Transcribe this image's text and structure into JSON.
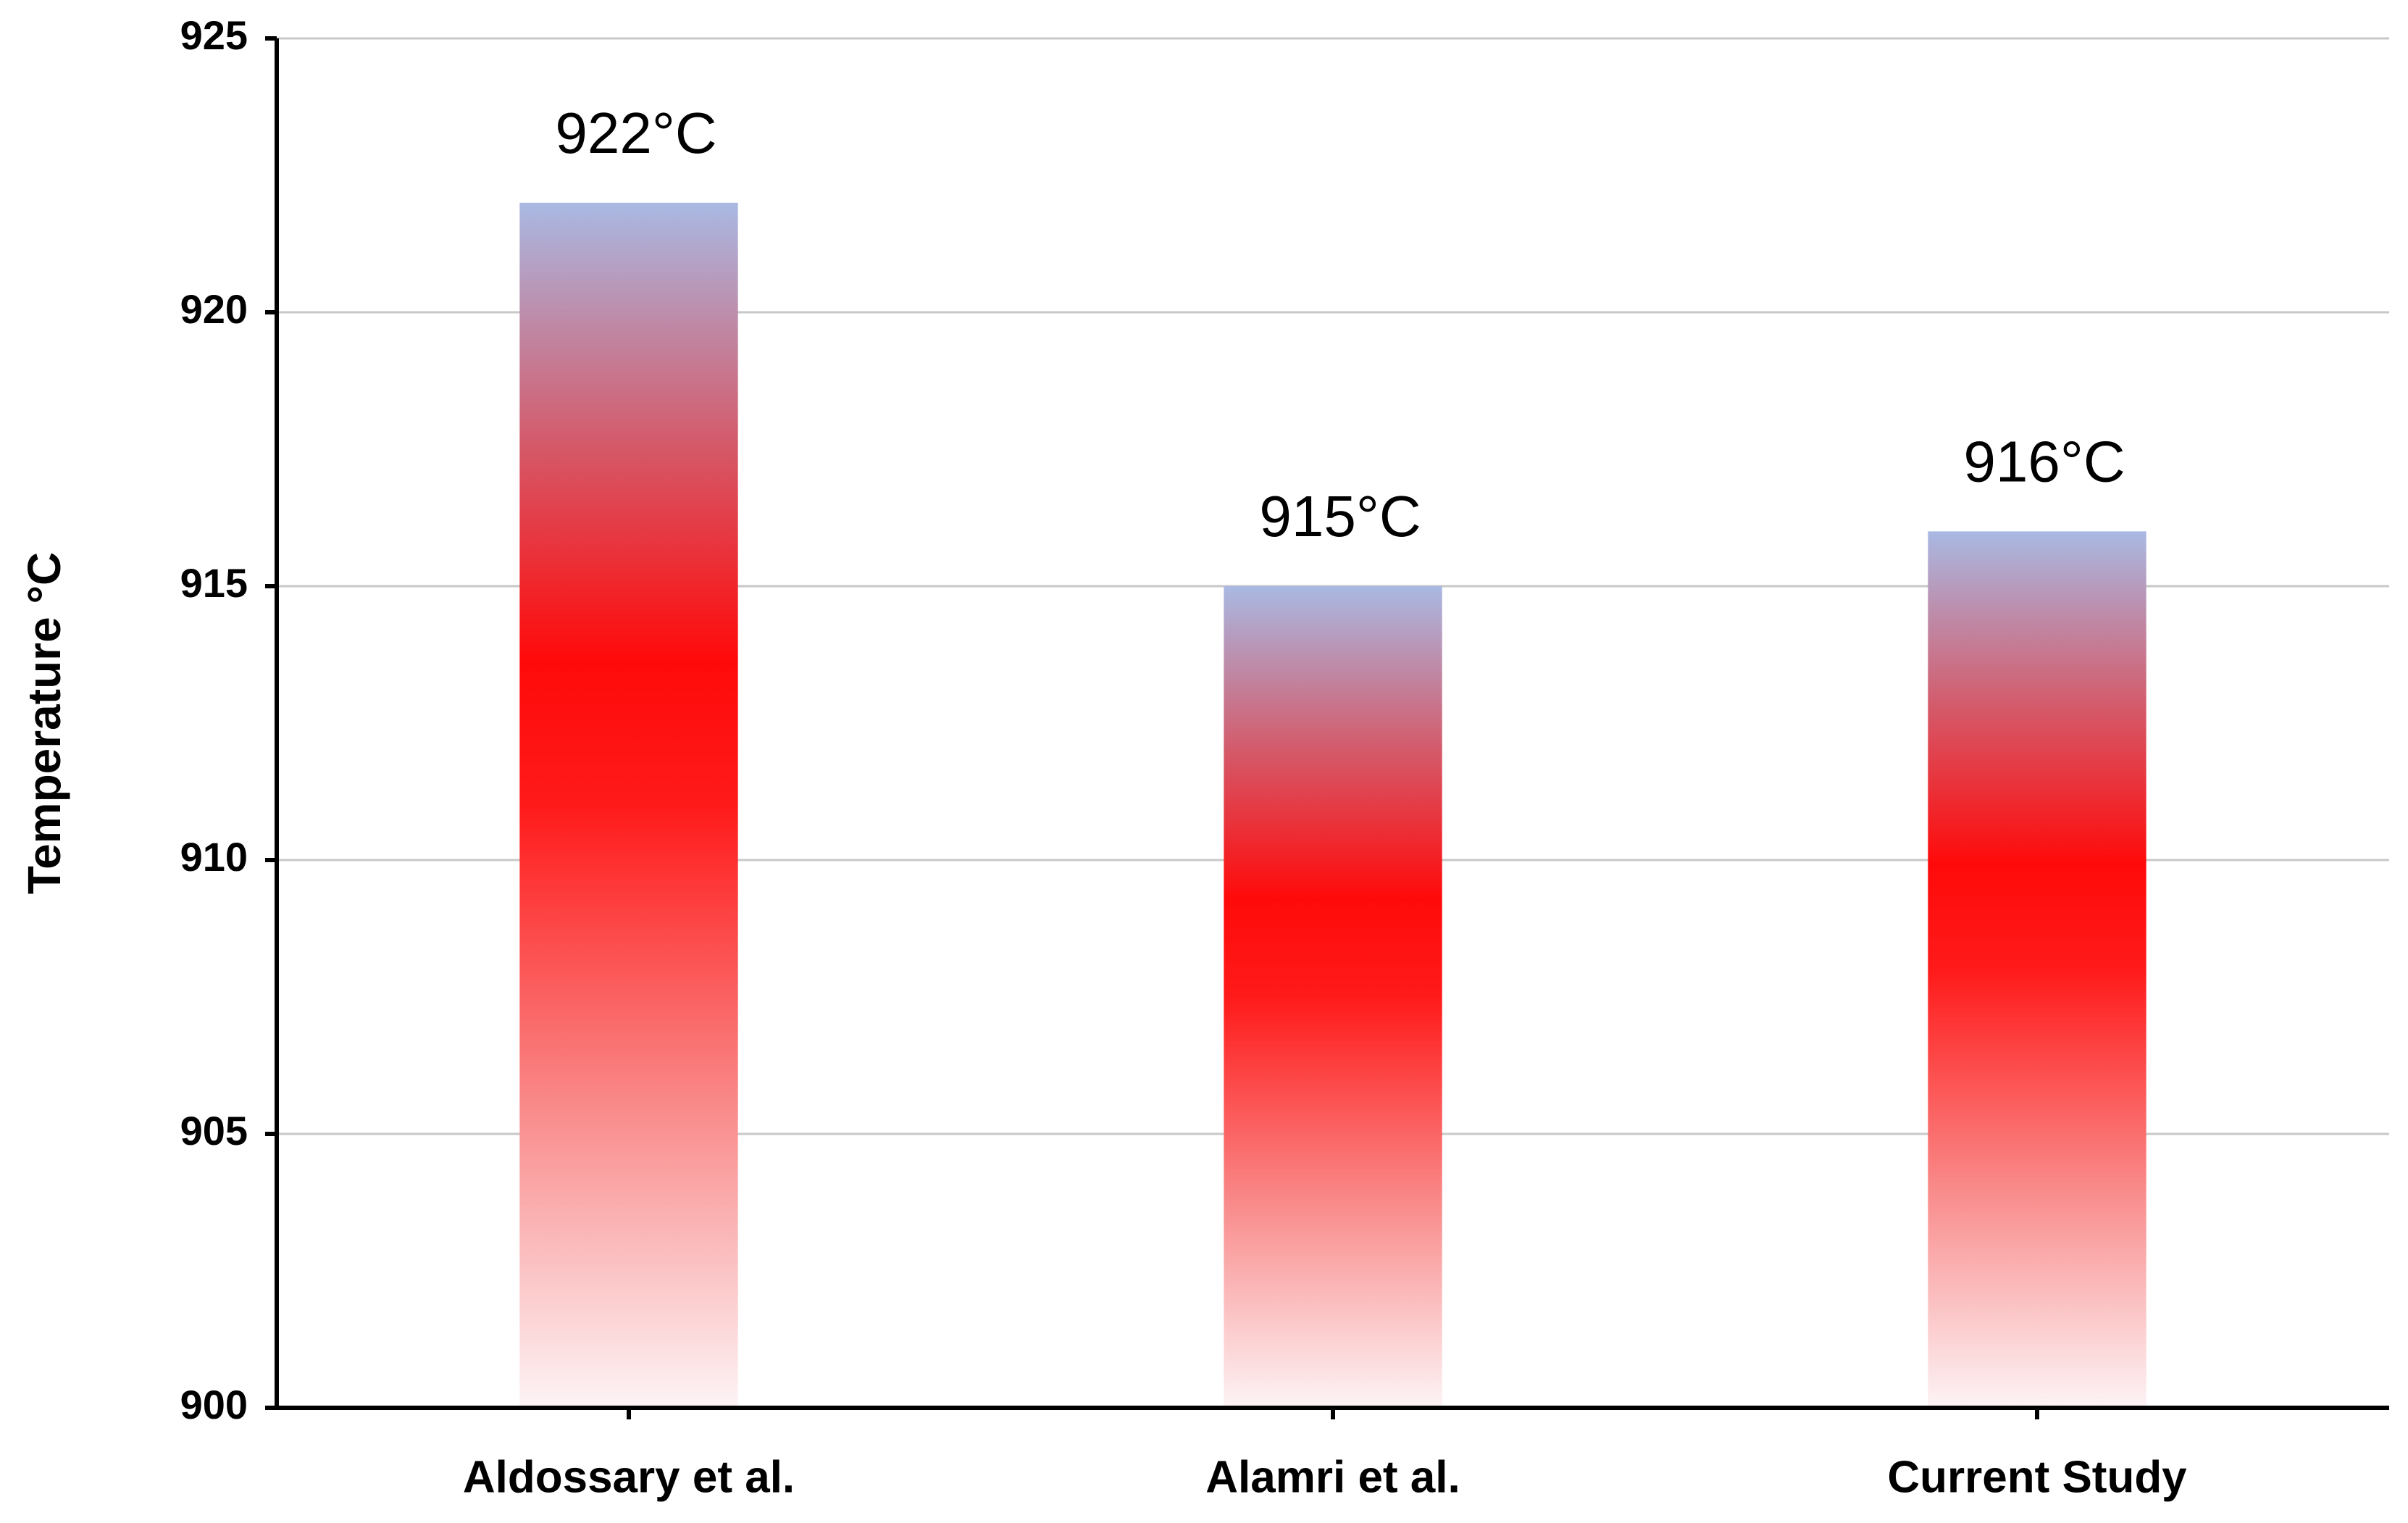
{
  "chart_data": {
    "type": "bar",
    "y_label": "Temperature °C",
    "categories": [
      "Aldossary et al.",
      "Alamri et al.",
      "Current Study"
    ],
    "values": [
      922,
      915,
      916
    ],
    "value_labels": [
      "922°C",
      "915°C",
      "916°C"
    ],
    "ylim": [
      900,
      925
    ],
    "yticks": [
      900,
      905,
      910,
      915,
      920,
      925
    ],
    "grid": true
  }
}
